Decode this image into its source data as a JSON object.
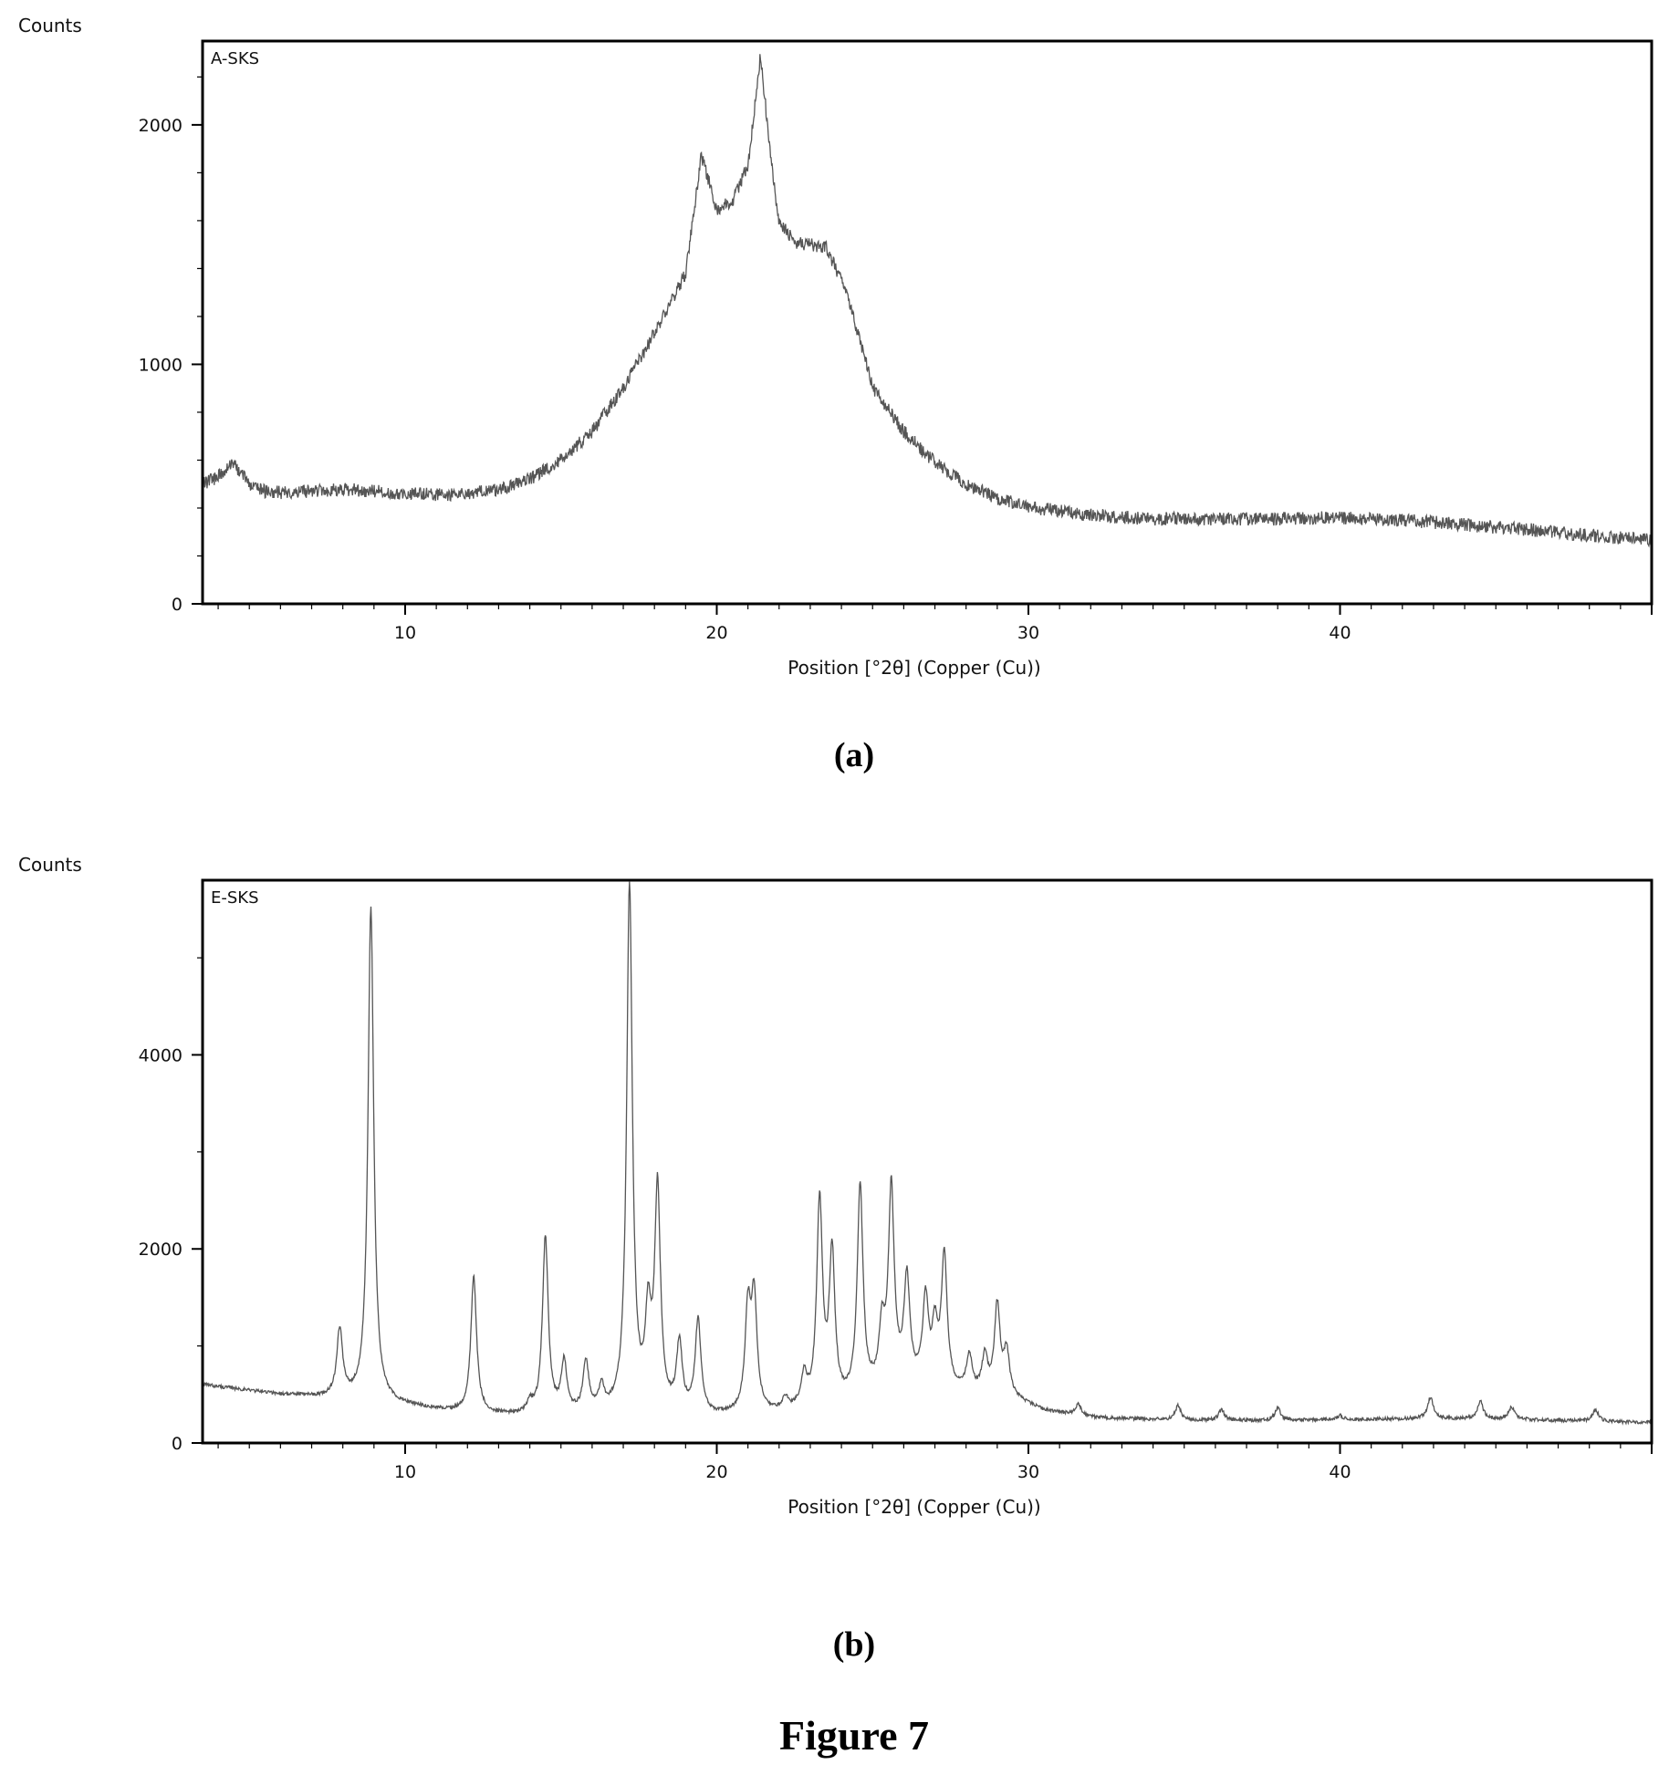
{
  "figure": {
    "title": "Figure 7"
  },
  "chart_data": [
    {
      "type": "line",
      "panel_label": "(a)",
      "series_label": "A-SKS",
      "ylabel": "Counts",
      "xlabel": "Position [°2θ] (Copper (Cu))",
      "xlim": [
        3.5,
        50
      ],
      "ylim": [
        0,
        2350
      ],
      "xticks": [
        "10",
        "20",
        "30",
        "40"
      ],
      "yticks": [
        "0",
        "1000",
        "2000"
      ],
      "grid": false,
      "color": "#555555",
      "noise_amplitude": 28,
      "series": [
        {
          "x": [
            3.5,
            4,
            4.5,
            5,
            5.5,
            6,
            7,
            8,
            9,
            10,
            11,
            12,
            13,
            14,
            15,
            16,
            17,
            18,
            19,
            19.5,
            20,
            20.5,
            21,
            21.4,
            21.8,
            22,
            22.5,
            23,
            23.5,
            24,
            24.5,
            25,
            26,
            27,
            28,
            29,
            30,
            32,
            34,
            36,
            38,
            40,
            42,
            44,
            46,
            48,
            50
          ],
          "y": [
            500,
            530,
            590,
            500,
            470,
            465,
            470,
            480,
            470,
            460,
            455,
            460,
            475,
            520,
            600,
            720,
            900,
            1130,
            1380,
            1870,
            1650,
            1680,
            1830,
            2290,
            1780,
            1600,
            1510,
            1500,
            1490,
            1350,
            1150,
            900,
            720,
            590,
            500,
            440,
            405,
            370,
            355,
            355,
            355,
            360,
            350,
            330,
            310,
            285,
            265
          ]
        }
      ]
    },
    {
      "type": "line",
      "panel_label": "(b)",
      "series_label": "E-SKS",
      "ylabel": "Counts",
      "xlabel": "Position [°2θ] (Copper (Cu))",
      "xlim": [
        3.5,
        50
      ],
      "ylim": [
        0,
        5800
      ],
      "xticks": [
        "10",
        "20",
        "30",
        "40"
      ],
      "yticks": [
        "0",
        "2000",
        "4000"
      ],
      "grid": false,
      "color": "#555555",
      "noise_amplitude": 18,
      "background": {
        "x": [
          3.5,
          6,
          8,
          10,
          12,
          14,
          16,
          18,
          20,
          22,
          24,
          26,
          28,
          29.5,
          30.5,
          32,
          35,
          38,
          40,
          43,
          46,
          50
        ],
        "y": [
          600,
          500,
          450,
          380,
          300,
          270,
          280,
          300,
          270,
          300,
          380,
          600,
          500,
          450,
          330,
          260,
          230,
          230,
          240,
          250,
          240,
          210
        ]
      },
      "peaks": [
        {
          "x": 7.9,
          "y": 1150
        },
        {
          "x": 8.9,
          "y": 5500
        },
        {
          "x": 12.2,
          "y": 1700
        },
        {
          "x": 14.0,
          "y": 380
        },
        {
          "x": 14.5,
          "y": 2100
        },
        {
          "x": 15.1,
          "y": 800
        },
        {
          "x": 15.8,
          "y": 800
        },
        {
          "x": 16.3,
          "y": 520
        },
        {
          "x": 17.2,
          "y": 5700
        },
        {
          "x": 17.8,
          "y": 1200
        },
        {
          "x": 18.1,
          "y": 2560
        },
        {
          "x": 18.8,
          "y": 980
        },
        {
          "x": 19.4,
          "y": 1230
        },
        {
          "x": 21.0,
          "y": 1300
        },
        {
          "x": 21.2,
          "y": 1420
        },
        {
          "x": 22.2,
          "y": 420
        },
        {
          "x": 22.8,
          "y": 640
        },
        {
          "x": 23.3,
          "y": 2440
        },
        {
          "x": 23.7,
          "y": 1900
        },
        {
          "x": 24.6,
          "y": 2620
        },
        {
          "x": 25.3,
          "y": 1100
        },
        {
          "x": 25.6,
          "y": 2570
        },
        {
          "x": 26.1,
          "y": 1640
        },
        {
          "x": 26.7,
          "y": 1430
        },
        {
          "x": 27.0,
          "y": 1100
        },
        {
          "x": 27.3,
          "y": 1880
        },
        {
          "x": 28.1,
          "y": 870
        },
        {
          "x": 28.6,
          "y": 850
        },
        {
          "x": 29.0,
          "y": 1380
        },
        {
          "x": 29.3,
          "y": 900
        },
        {
          "x": 31.6,
          "y": 400
        },
        {
          "x": 34.8,
          "y": 380
        },
        {
          "x": 36.2,
          "y": 340
        },
        {
          "x": 38.0,
          "y": 360
        },
        {
          "x": 40.0,
          "y": 280
        },
        {
          "x": 42.9,
          "y": 470
        },
        {
          "x": 44.5,
          "y": 430
        },
        {
          "x": 45.5,
          "y": 370
        },
        {
          "x": 48.2,
          "y": 340
        }
      ]
    }
  ]
}
